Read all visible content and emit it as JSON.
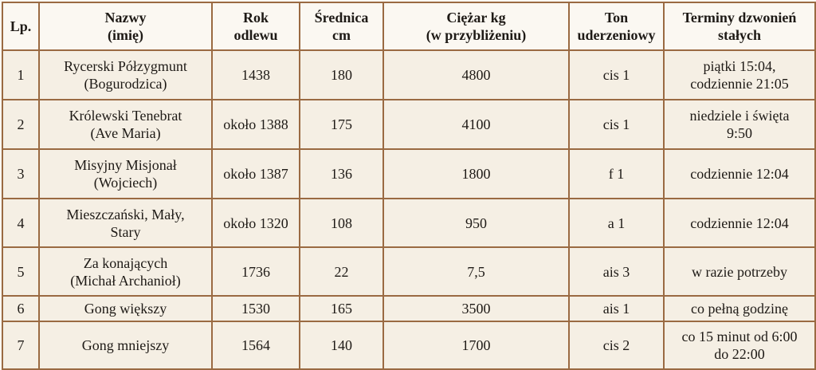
{
  "table": {
    "header": [
      "Lp.",
      "Nazwy\n(imię)",
      "Rok\nodlewu",
      "Średnica\ncm",
      "Ciężar kg\n(w przybliżeniu)",
      "Ton\nuderzeniowy",
      "Terminy dzwonień\nstałych"
    ],
    "rows": [
      [
        "1",
        "Rycerski Półzygmunt\n(Bogurodzica)",
        "1438",
        "180",
        "4800",
        "cis 1",
        "piątki 15:04,\ncodziennie 21:05"
      ],
      [
        "2",
        "Królewski Tenebrat\n(Ave Maria)",
        "około 1388",
        "175",
        "4100",
        "cis 1",
        "niedziele i święta\n9:50"
      ],
      [
        "3",
        "Misyjny Misjonał\n(Wojciech)",
        "około 1387",
        "136",
        "1800",
        "f 1",
        "codziennie 12:04"
      ],
      [
        "4",
        "Mieszczański, Mały,\nStary",
        "około 1320",
        "108",
        "950",
        "a 1",
        "codziennie 12:04"
      ],
      [
        "5",
        "Za konających\n(Michał Archanioł)",
        "1736",
        "22",
        "7,5",
        "ais 3",
        "w razie potrzeby"
      ],
      [
        "6",
        "Gong większy",
        "1530",
        "165",
        "3500",
        "ais 1",
        "co pełną godzinę"
      ],
      [
        "7",
        "Gong mniejszy",
        "1564",
        "140",
        "1700",
        "cis 2",
        "co 15 minut od 6:00\ndo 22:00"
      ]
    ]
  }
}
